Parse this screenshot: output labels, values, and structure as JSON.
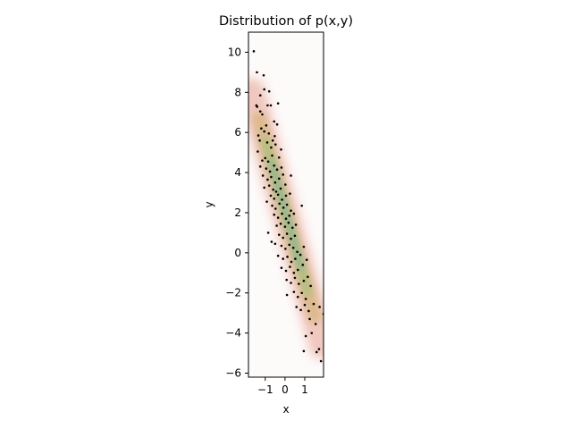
{
  "chart_data": {
    "type": "scatter",
    "title": "Distribution of p(x,y)",
    "xlabel": "x",
    "ylabel": "y",
    "xlim": [
      -1.85,
      1.95
    ],
    "ylim": [
      -6.2,
      11.0
    ],
    "xticks": [
      -1,
      0,
      1
    ],
    "yticks": [
      -6,
      -4,
      -2,
      0,
      2,
      4,
      6,
      8,
      10
    ],
    "xtick_labels": [
      "−1",
      "0",
      "1"
    ],
    "ytick_labels": [
      "−6",
      "−4",
      "−2",
      "0",
      "2",
      "4",
      "6",
      "8",
      "10"
    ],
    "grid": false,
    "legend": "none",
    "background": "density heatmap of p(x,y) (white → pink → tan → green → blue near the mode), ridge along y ≈ 2 − 3.5x",
    "series": [
      {
        "marker_color": "#000000",
        "points": [
          [
            -1.58,
            10.05
          ],
          [
            -1.42,
            9.0
          ],
          [
            -1.08,
            8.85
          ],
          [
            -1.05,
            8.15
          ],
          [
            -1.25,
            7.85
          ],
          [
            -0.8,
            8.05
          ],
          [
            -1.45,
            7.35
          ],
          [
            -1.41,
            7.28
          ],
          [
            -0.88,
            7.35
          ],
          [
            -0.72,
            7.35
          ],
          [
            -1.25,
            7.05
          ],
          [
            -1.15,
            6.9
          ],
          [
            -0.35,
            7.45
          ],
          [
            -0.55,
            6.55
          ],
          [
            -0.4,
            6.4
          ],
          [
            -1.2,
            6.2
          ],
          [
            -1.05,
            6.05
          ],
          [
            -1.35,
            5.85
          ],
          [
            -1.28,
            5.6
          ],
          [
            -0.82,
            5.95
          ],
          [
            -0.52,
            5.82
          ],
          [
            -0.9,
            5.5
          ],
          [
            -1.38,
            5.05
          ],
          [
            -0.7,
            5.25
          ],
          [
            -0.48,
            5.4
          ],
          [
            -1.15,
            4.6
          ],
          [
            -1.0,
            4.72
          ],
          [
            -0.85,
            4.55
          ],
          [
            -0.65,
            4.85
          ],
          [
            -0.3,
            4.75
          ],
          [
            -1.25,
            4.3
          ],
          [
            -0.95,
            4.2
          ],
          [
            -0.76,
            4.05
          ],
          [
            -0.55,
            4.35
          ],
          [
            -0.4,
            4.15
          ],
          [
            -0.18,
            4.25
          ],
          [
            -1.12,
            3.85
          ],
          [
            -0.88,
            3.65
          ],
          [
            -0.7,
            3.78
          ],
          [
            -0.5,
            3.5
          ],
          [
            -0.3,
            3.7
          ],
          [
            -0.1,
            3.9
          ],
          [
            -1.05,
            3.25
          ],
          [
            -0.8,
            3.35
          ],
          [
            -0.6,
            3.15
          ],
          [
            -0.45,
            3.05
          ],
          [
            -0.22,
            3.2
          ],
          [
            0.02,
            3.4
          ],
          [
            -0.72,
            2.85
          ],
          [
            -0.55,
            2.7
          ],
          [
            -0.35,
            2.9
          ],
          [
            -0.15,
            2.65
          ],
          [
            0.05,
            2.85
          ],
          [
            0.25,
            2.95
          ],
          [
            -0.65,
            2.35
          ],
          [
            -0.48,
            2.2
          ],
          [
            -0.28,
            2.45
          ],
          [
            -0.08,
            2.25
          ],
          [
            0.1,
            2.4
          ],
          [
            0.3,
            2.1
          ],
          [
            -0.55,
            1.9
          ],
          [
            -0.35,
            1.75
          ],
          [
            -0.15,
            1.95
          ],
          [
            0.05,
            1.7
          ],
          [
            0.22,
            1.85
          ],
          [
            0.45,
            1.95
          ],
          [
            -0.42,
            1.35
          ],
          [
            -0.22,
            1.45
          ],
          [
            0.0,
            1.3
          ],
          [
            0.18,
            1.5
          ],
          [
            0.38,
            1.25
          ],
          [
            0.55,
            1.4
          ],
          [
            -0.85,
            1.0
          ],
          [
            -0.3,
            0.9
          ],
          [
            -0.1,
            0.75
          ],
          [
            0.1,
            0.95
          ],
          [
            0.3,
            0.7
          ],
          [
            0.5,
            0.85
          ],
          [
            -0.5,
            0.45
          ],
          [
            -0.18,
            0.35
          ],
          [
            0.02,
            0.2
          ],
          [
            0.22,
            0.4
          ],
          [
            0.42,
            0.25
          ],
          [
            0.62,
            0.05
          ],
          [
            -0.35,
            -0.15
          ],
          [
            -0.1,
            -0.3
          ],
          [
            0.12,
            -0.2
          ],
          [
            0.32,
            -0.45
          ],
          [
            0.52,
            -0.3
          ],
          [
            0.78,
            -0.1
          ],
          [
            -0.18,
            -0.75
          ],
          [
            0.05,
            -0.9
          ],
          [
            0.25,
            -0.7
          ],
          [
            0.45,
            -1.0
          ],
          [
            0.65,
            -0.85
          ],
          [
            0.9,
            -0.6
          ],
          [
            0.08,
            -1.35
          ],
          [
            0.3,
            -1.5
          ],
          [
            0.5,
            -1.25
          ],
          [
            0.7,
            -1.55
          ],
          [
            0.95,
            -1.4
          ],
          [
            1.15,
            -1.2
          ],
          [
            0.1,
            -2.1
          ],
          [
            0.45,
            -1.95
          ],
          [
            0.65,
            -2.2
          ],
          [
            0.85,
            -2.0
          ],
          [
            1.05,
            -2.3
          ],
          [
            1.3,
            -1.65
          ],
          [
            0.58,
            -2.7
          ],
          [
            0.8,
            -2.85
          ],
          [
            1.0,
            -2.6
          ],
          [
            1.2,
            -2.9
          ],
          [
            1.45,
            -2.55
          ],
          [
            1.55,
            -3.55
          ],
          [
            1.25,
            -3.3
          ],
          [
            1.35,
            -4.0
          ],
          [
            1.05,
            -4.15
          ],
          [
            1.75,
            -2.7
          ],
          [
            1.95,
            -3.05
          ],
          [
            0.95,
            -4.9
          ],
          [
            1.6,
            -4.95
          ],
          [
            1.72,
            -4.8
          ],
          [
            1.82,
            -5.4
          ],
          [
            -0.62,
            5.6
          ],
          [
            -0.95,
            6.35
          ],
          [
            -0.2,
            5.15
          ],
          [
            0.85,
            2.35
          ],
          [
            0.3,
            3.85
          ],
          [
            -0.68,
            0.55
          ],
          [
            0.95,
            0.3
          ],
          [
            -0.92,
            2.55
          ],
          [
            1.1,
            -0.35
          ]
        ]
      }
    ]
  }
}
